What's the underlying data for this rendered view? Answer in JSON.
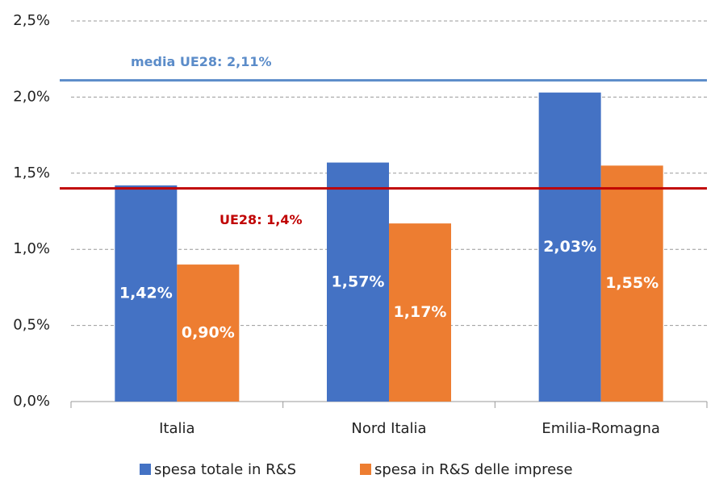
{
  "chart_data": {
    "type": "bar",
    "categories": [
      "Italia",
      "Nord Italia",
      "Emilia-Romagna"
    ],
    "series": [
      {
        "name": "spesa totale in R&S",
        "color": "#4472c4",
        "values": [
          1.42,
          1.57,
          2.03
        ],
        "value_labels": [
          "1,42%",
          "1,57%",
          "2,03%"
        ]
      },
      {
        "name": "spesa in R&S delle imprese",
        "color": "#ed7d31",
        "values": [
          0.9,
          1.17,
          1.55
        ],
        "value_labels": [
          "0,90%",
          "1,17%",
          "1,55%"
        ]
      }
    ],
    "reference_lines": [
      {
        "label": "media UE28: 2,11%",
        "value": 2.11,
        "color": "#5b8cc9"
      },
      {
        "label": "UE28: 1,4%",
        "value": 1.4,
        "color": "#c00000"
      }
    ],
    "ylim": [
      0,
      2.5
    ],
    "yticks": [
      {
        "value": 0,
        "label": "0,0%"
      },
      {
        "value": 0.5,
        "label": "0,5%"
      },
      {
        "value": 1.0,
        "label": "1,0%"
      },
      {
        "value": 1.5,
        "label": "1,5%"
      },
      {
        "value": 2.0,
        "label": "2,0%"
      },
      {
        "value": 2.5,
        "label": "2,5%"
      }
    ],
    "grid": true,
    "legend": "bottom"
  }
}
